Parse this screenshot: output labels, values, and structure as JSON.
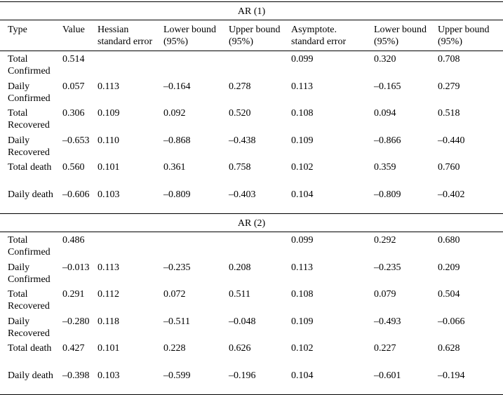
{
  "columns": [
    "Type",
    "Value",
    "Hessian standard error",
    "Lower bound (95%)",
    "Upper bound (95%)",
    "Asymptote. standard error",
    "Lower bound (95%)",
    "Upper bound (95%)"
  ],
  "sections": [
    {
      "title": "AR (1)",
      "rows": [
        [
          "Total Confirmed",
          "0.514",
          null,
          null,
          null,
          "0.099",
          "0.320",
          "0.708"
        ],
        [
          "Daily Confirmed",
          "0.057",
          "0.113",
          "–0.164",
          "0.278",
          "0.113",
          "–0.165",
          "0.279"
        ],
        [
          "Total Recovered",
          "0.306",
          "0.109",
          "0.092",
          "0.520",
          "0.108",
          "0.094",
          "0.518"
        ],
        [
          "Daily Recovered",
          "–0.653",
          "0.110",
          "–0.868",
          "–0.438",
          "0.109",
          "–0.866",
          "–0.440"
        ],
        [
          "Total death",
          "0.560",
          "0.101",
          "0.361",
          "0.758",
          "0.102",
          "0.359",
          "0.760"
        ],
        [
          "Daily death",
          "–0.606",
          "0.103",
          "–0.809",
          "–0.403",
          "0.104",
          "–0.809",
          "–0.402"
        ]
      ]
    },
    {
      "title": "AR (2)",
      "rows": [
        [
          "Total Confirmed",
          "0.486",
          null,
          null,
          null,
          "0.099",
          "0.292",
          "0.680"
        ],
        [
          "Daily Confirmed",
          "–0.013",
          "0.113",
          "–0.235",
          "0.208",
          "0.113",
          "–0.235",
          "0.209"
        ],
        [
          "Total Recovered",
          "0.291",
          "0.112",
          "0.072",
          "0.511",
          "0.108",
          "0.079",
          "0.504"
        ],
        [
          "Daily Recovered",
          "–0.280",
          "0.118",
          "–0.511",
          "–0.048",
          "0.109",
          "–0.493",
          "–0.066"
        ],
        [
          "Total death",
          "0.427",
          "0.101",
          "0.228",
          "0.626",
          "0.102",
          "0.227",
          "0.628"
        ],
        [
          "Daily death",
          "–0.398",
          "0.103",
          "–0.599",
          "–0.196",
          "0.104",
          "–0.601",
          "–0.194"
        ]
      ]
    }
  ]
}
